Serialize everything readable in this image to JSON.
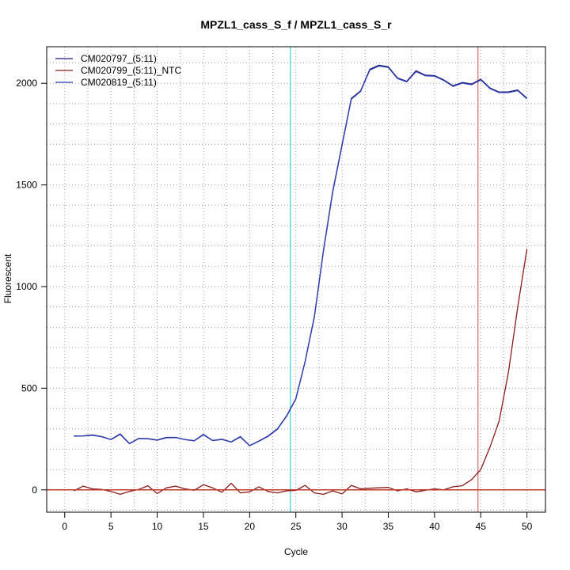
{
  "chart_data": {
    "type": "line",
    "title": "MPZL1_cass_S_f / MPZL1_cass_S_r",
    "xlabel": "Cycle",
    "ylabel": "Fluorescent",
    "xlim": [
      -1.95,
      52.0
    ],
    "ylim": [
      -110,
      2180
    ],
    "x_ticks": [
      0,
      5,
      10,
      15,
      20,
      25,
      30,
      35,
      40,
      45,
      50
    ],
    "y_ticks": [
      0,
      500,
      1000,
      1500,
      2000
    ],
    "grid": true,
    "legend_position": "top-left",
    "threshold_line": {
      "y": 0,
      "color": "#c0392b"
    },
    "vertical_lines": [
      {
        "x": 24.4,
        "color": "#36d1e0"
      },
      {
        "x": 44.7,
        "color": "#d46a6a"
      }
    ],
    "series": [
      {
        "name": "CM020797_(5:11)",
        "color": "#1a1a7a",
        "x": [
          1,
          2,
          3,
          4,
          5,
          6,
          7,
          8,
          9,
          10,
          11,
          12,
          13,
          14,
          15,
          16,
          17,
          18,
          19,
          20,
          21,
          22,
          23,
          24,
          25,
          26,
          27,
          28,
          29,
          30,
          31,
          32,
          33,
          34,
          35,
          36,
          37,
          38,
          39,
          40,
          41,
          42,
          43,
          44,
          45,
          46,
          47,
          48,
          49,
          50
        ],
        "y": [
          265,
          266,
          270,
          262,
          248,
          275,
          228,
          253,
          252,
          245,
          258,
          258,
          248,
          242,
          273,
          243,
          249,
          236,
          262,
          218,
          240,
          265,
          300,
          364,
          449,
          632,
          853,
          1182,
          1471,
          1699,
          1926,
          1963,
          2069,
          2089,
          2081,
          2026,
          2010,
          2062,
          2040,
          2038,
          2017,
          1988,
          2004,
          1996,
          2020,
          1977,
          1957,
          1958,
          1967,
          1927
        ]
      },
      {
        "name": "CM020799_(5:11)_NTC",
        "color": "#8b1a1a",
        "x": [
          1,
          2,
          3,
          4,
          5,
          6,
          7,
          8,
          9,
          10,
          11,
          12,
          13,
          14,
          15,
          16,
          17,
          18,
          19,
          20,
          21,
          22,
          23,
          24,
          25,
          26,
          27,
          28,
          29,
          30,
          31,
          32,
          33,
          34,
          35,
          36,
          37,
          38,
          39,
          40,
          41,
          42,
          43,
          44,
          45,
          46,
          47,
          48,
          49,
          50
        ],
        "y": [
          -5,
          18,
          5,
          2,
          -8,
          -22,
          -8,
          2,
          20,
          -18,
          10,
          18,
          5,
          -2,
          25,
          10,
          -12,
          32,
          -15,
          -10,
          15,
          -8,
          -15,
          -5,
          -3,
          22,
          -15,
          -22,
          -5,
          -20,
          22,
          5,
          8,
          10,
          12,
          -5,
          5,
          -10,
          -2,
          5,
          0,
          15,
          20,
          50,
          100,
          210,
          340,
          580,
          900,
          1185
        ]
      },
      {
        "name": "CM020819_(5:11)",
        "color": "#2f3fb0",
        "x": [
          1,
          2,
          3,
          4,
          5,
          6,
          7,
          8,
          9,
          10,
          11,
          12,
          13,
          14,
          15,
          16,
          17,
          18,
          19,
          20,
          21,
          22,
          23,
          24,
          25,
          26,
          27,
          28,
          29,
          30,
          31,
          32,
          33,
          34,
          35,
          36,
          37,
          38,
          39,
          40,
          41,
          42,
          43,
          44,
          45,
          46,
          47,
          48,
          49,
          50
        ],
        "y": [
          264,
          265,
          268,
          261,
          247,
          273,
          227,
          252,
          251,
          244,
          256,
          257,
          247,
          241,
          271,
          242,
          248,
          235,
          260,
          217,
          239,
          263,
          298,
          362,
          447,
          630,
          850,
          1178,
          1467,
          1695,
          1922,
          1960,
          2065,
          2085,
          2078,
          2023,
          2007,
          2058,
          2037,
          2035,
          2014,
          1985,
          2001,
          1993,
          2017,
          1974,
          1954,
          1955,
          1964,
          1924
        ]
      }
    ]
  }
}
